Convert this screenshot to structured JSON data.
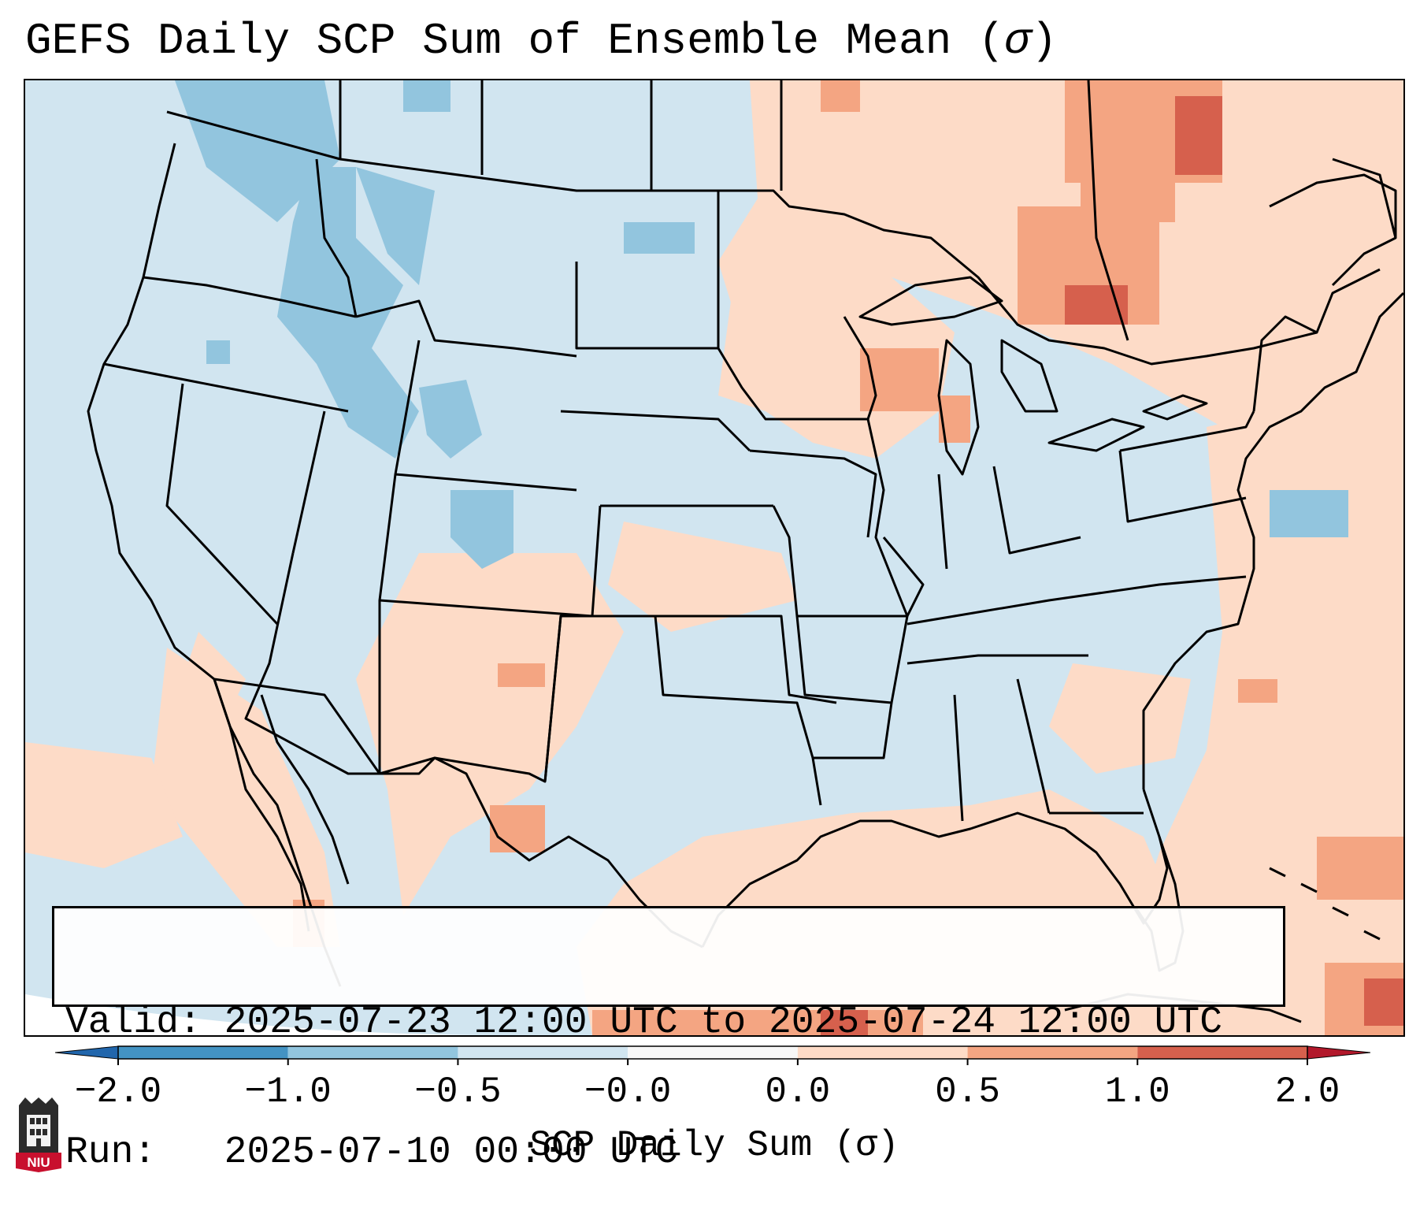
{
  "title": {
    "main": "GEFS Daily SCP Sum of Ensemble Mean (",
    "symbol": "σ",
    "close": ")"
  },
  "info_box": {
    "valid_line": "Valid: 2025-07-23 12:00 UTC to 2025-07-24 12:00 UTC",
    "run_line": "Run:   2025-07-10 00:00 UTC"
  },
  "colorbar": {
    "label": "SCP Daily Sum (σ)",
    "ticks": [
      "−2.0",
      "−1.0",
      "−0.5",
      "−0.0",
      "0.0",
      "0.5",
      "1.0",
      "2.0"
    ],
    "colors": [
      "#2166ac",
      "#4393c3",
      "#92c5de",
      "#d1e5f0",
      "#f7f7f7",
      "#fddbc7",
      "#f4a582",
      "#d6604d",
      "#b2182b"
    ]
  },
  "logo": {
    "text": "NIU"
  },
  "colors": {
    "ocean_base": "#d1e5f0",
    "border": "#000000"
  }
}
